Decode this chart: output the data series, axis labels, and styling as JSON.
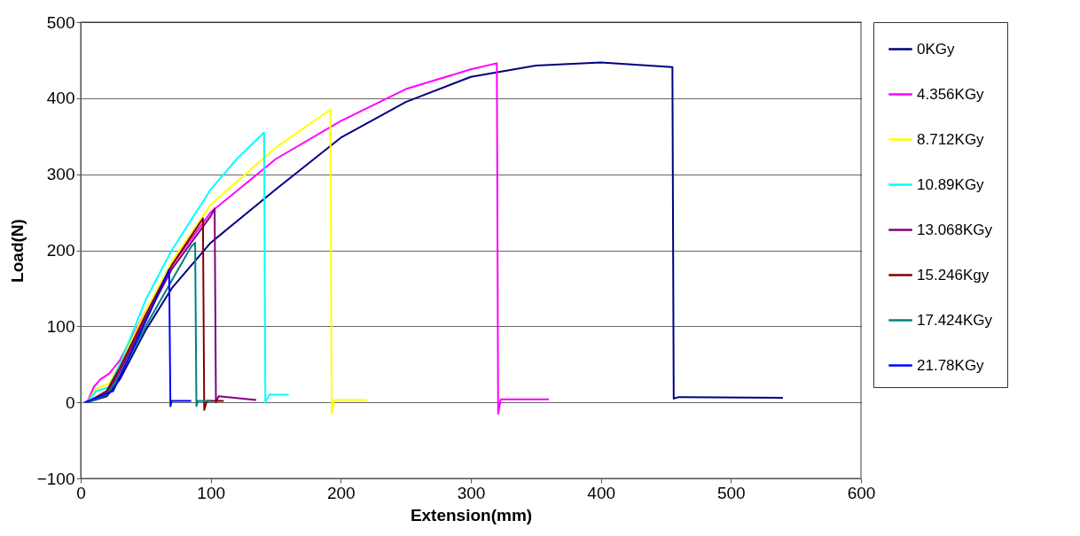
{
  "chart_data": {
    "type": "line",
    "xlabel": "Extension(mm)",
    "ylabel": "Load(N)",
    "xlim": [
      0,
      600
    ],
    "xticks": [
      0,
      100,
      200,
      300,
      400,
      500,
      600
    ],
    "ylim": [
      -100,
      500
    ],
    "yticks": [
      -100,
      0,
      100,
      200,
      300,
      400,
      500
    ],
    "grid": "y",
    "legend": "right",
    "marker": "none",
    "line_style": "solid",
    "series": [
      {
        "name": "0KGy",
        "color": "#000080",
        "x": [
          5,
          20,
          30,
          50,
          70,
          100,
          150,
          200,
          250,
          300,
          350,
          400,
          455,
          456,
          460,
          540
        ],
        "values": [
          0,
          8,
          30,
          95,
          150,
          210,
          280,
          348,
          395,
          428,
          443,
          447,
          441,
          5,
          7,
          6
        ]
      },
      {
        "name": "4.356KGy",
        "color": "#ff00ff",
        "x": [
          5,
          10,
          15,
          22,
          30,
          50,
          70,
          100,
          150,
          200,
          250,
          300,
          320,
          321,
          323,
          360
        ],
        "values": [
          0,
          20,
          30,
          38,
          55,
          120,
          180,
          250,
          320,
          370,
          412,
          438,
          446,
          -15,
          4,
          4
        ]
      },
      {
        "name": "8.712KGy",
        "color": "#ffff00",
        "x": [
          5,
          12,
          22,
          30,
          50,
          70,
          100,
          150,
          192,
          193,
          195,
          220
        ],
        "values": [
          0,
          18,
          25,
          50,
          120,
          185,
          260,
          335,
          385,
          -15,
          3,
          3
        ]
      },
      {
        "name": "10.89KGy",
        "color": "#00ffff",
        "x": [
          5,
          12,
          22,
          30,
          50,
          70,
          100,
          120,
          141,
          142,
          145,
          160
        ],
        "values": [
          0,
          15,
          20,
          50,
          135,
          200,
          280,
          320,
          355,
          0,
          10,
          10
        ]
      },
      {
        "name": "13.068KGy",
        "color": "#800080",
        "x": [
          5,
          20,
          30,
          50,
          70,
          100,
          103,
          104,
          106,
          135
        ],
        "values": [
          0,
          12,
          40,
          110,
          175,
          245,
          255,
          0,
          8,
          3
        ]
      },
      {
        "name": "15.246Kgy",
        "color": "#800000",
        "x": [
          5,
          20,
          30,
          50,
          70,
          94,
          95,
          97,
          110
        ],
        "values": [
          0,
          15,
          45,
          115,
          180,
          242,
          -10,
          2,
          2
        ]
      },
      {
        "name": "17.424KGy",
        "color": "#008080",
        "x": [
          5,
          20,
          30,
          50,
          70,
          85,
          88,
          89,
          90,
          100
        ],
        "values": [
          0,
          10,
          35,
          100,
          160,
          205,
          210,
          -5,
          2,
          2
        ]
      },
      {
        "name": "21.78KGy",
        "color": "#0000ff",
        "x": [
          3,
          15,
          25,
          40,
          55,
          68,
          69,
          70,
          85
        ],
        "values": [
          0,
          8,
          15,
          70,
          125,
          175,
          -5,
          2,
          2
        ]
      }
    ]
  }
}
